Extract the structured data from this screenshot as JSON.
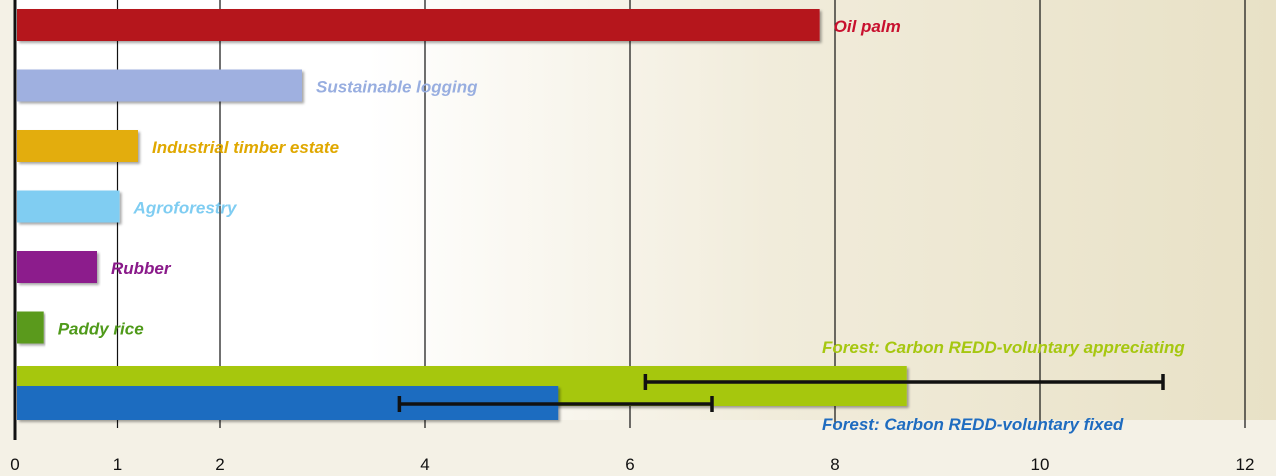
{
  "chart_data": {
    "type": "bar",
    "orientation": "horizontal",
    "xlim": [
      0,
      12
    ],
    "xticks": [
      "0",
      "1",
      "2",
      "4",
      "6",
      "8",
      "10",
      "12"
    ],
    "xtick_values": [
      0,
      1,
      2,
      4,
      6,
      8,
      10,
      12
    ],
    "grid": "vertical",
    "categories": [
      "Oil palm",
      "Sustainable logging",
      "Industrial timber estate",
      "Agroforestry",
      "Rubber",
      "Paddy rice",
      "Forest: Carbon REDD-voluntary appreciating",
      "Forest: Carbon REDD-voluntary fixed"
    ],
    "values": [
      7.85,
      2.8,
      1.2,
      1.02,
      0.8,
      0.28,
      8.7,
      5.3
    ],
    "colors": [
      "#b5161b",
      "#9fb0e0",
      "#e3ad0b",
      "#80cdf2",
      "#8c1a8c",
      "#5a9a1e",
      "#a6c710",
      "#1f6cc0"
    ],
    "label_colors": [
      "#c8102e",
      "#98aee0",
      "#e0a800",
      "#7fcdf2",
      "#8a1a8a",
      "#4f9a1a",
      "#a6c710",
      "#1f6cc0"
    ],
    "error_bars": [
      {
        "category": "Forest: Carbon REDD-voluntary appreciating",
        "low": 6.15,
        "high": 11.2
      },
      {
        "category": "Forest: Carbon REDD-voluntary fixed",
        "low": 3.75,
        "high": 6.8
      }
    ]
  }
}
